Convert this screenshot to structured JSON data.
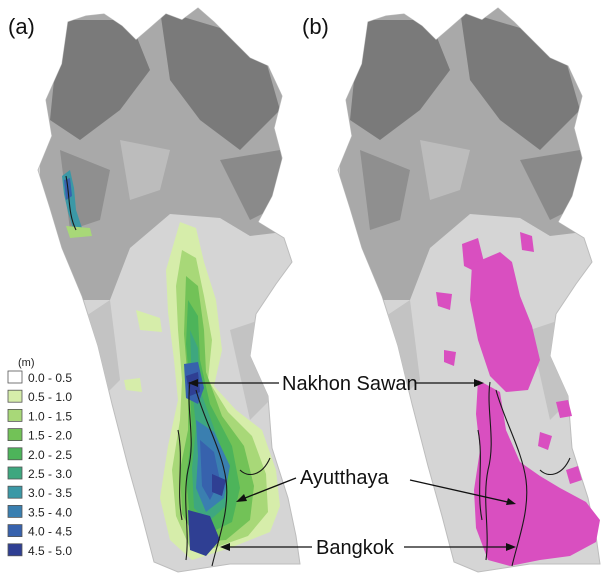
{
  "panels": [
    {
      "id": "a",
      "label": "(a)"
    },
    {
      "id": "b",
      "label": "(b)"
    }
  ],
  "legend": {
    "unit": "(m)",
    "classes": [
      {
        "range": "0.0 - 0.5",
        "color": "#ffffff"
      },
      {
        "range": "0.5 - 1.0",
        "color": "#d6edaa"
      },
      {
        "range": "1.0 - 1.5",
        "color": "#a8d878"
      },
      {
        "range": "1.5 - 2.0",
        "color": "#72c257"
      },
      {
        "range": "2.0 - 2.5",
        "color": "#4db45a"
      },
      {
        "range": "2.5 - 3.0",
        "color": "#3ea77f"
      },
      {
        "range": "3.0 - 3.5",
        "color": "#3b98a6"
      },
      {
        "range": "3.5 - 4.0",
        "color": "#3a7fb0"
      },
      {
        "range": "4.0 - 4.5",
        "color": "#3762ad"
      },
      {
        "range": "4.5 - 5.0",
        "color": "#2f3f93"
      }
    ]
  },
  "places": [
    {
      "name": "Nakhon Sawan"
    },
    {
      "name": "Ayutthaya"
    },
    {
      "name": "Bangkok"
    }
  ],
  "colors": {
    "terrain_light": "#d5d5d5",
    "terrain_mid": "#a9a9a9",
    "terrain_dark": "#7a7a7a",
    "observed_flood": "#d94fc0",
    "river": "#1a1a1a"
  }
}
